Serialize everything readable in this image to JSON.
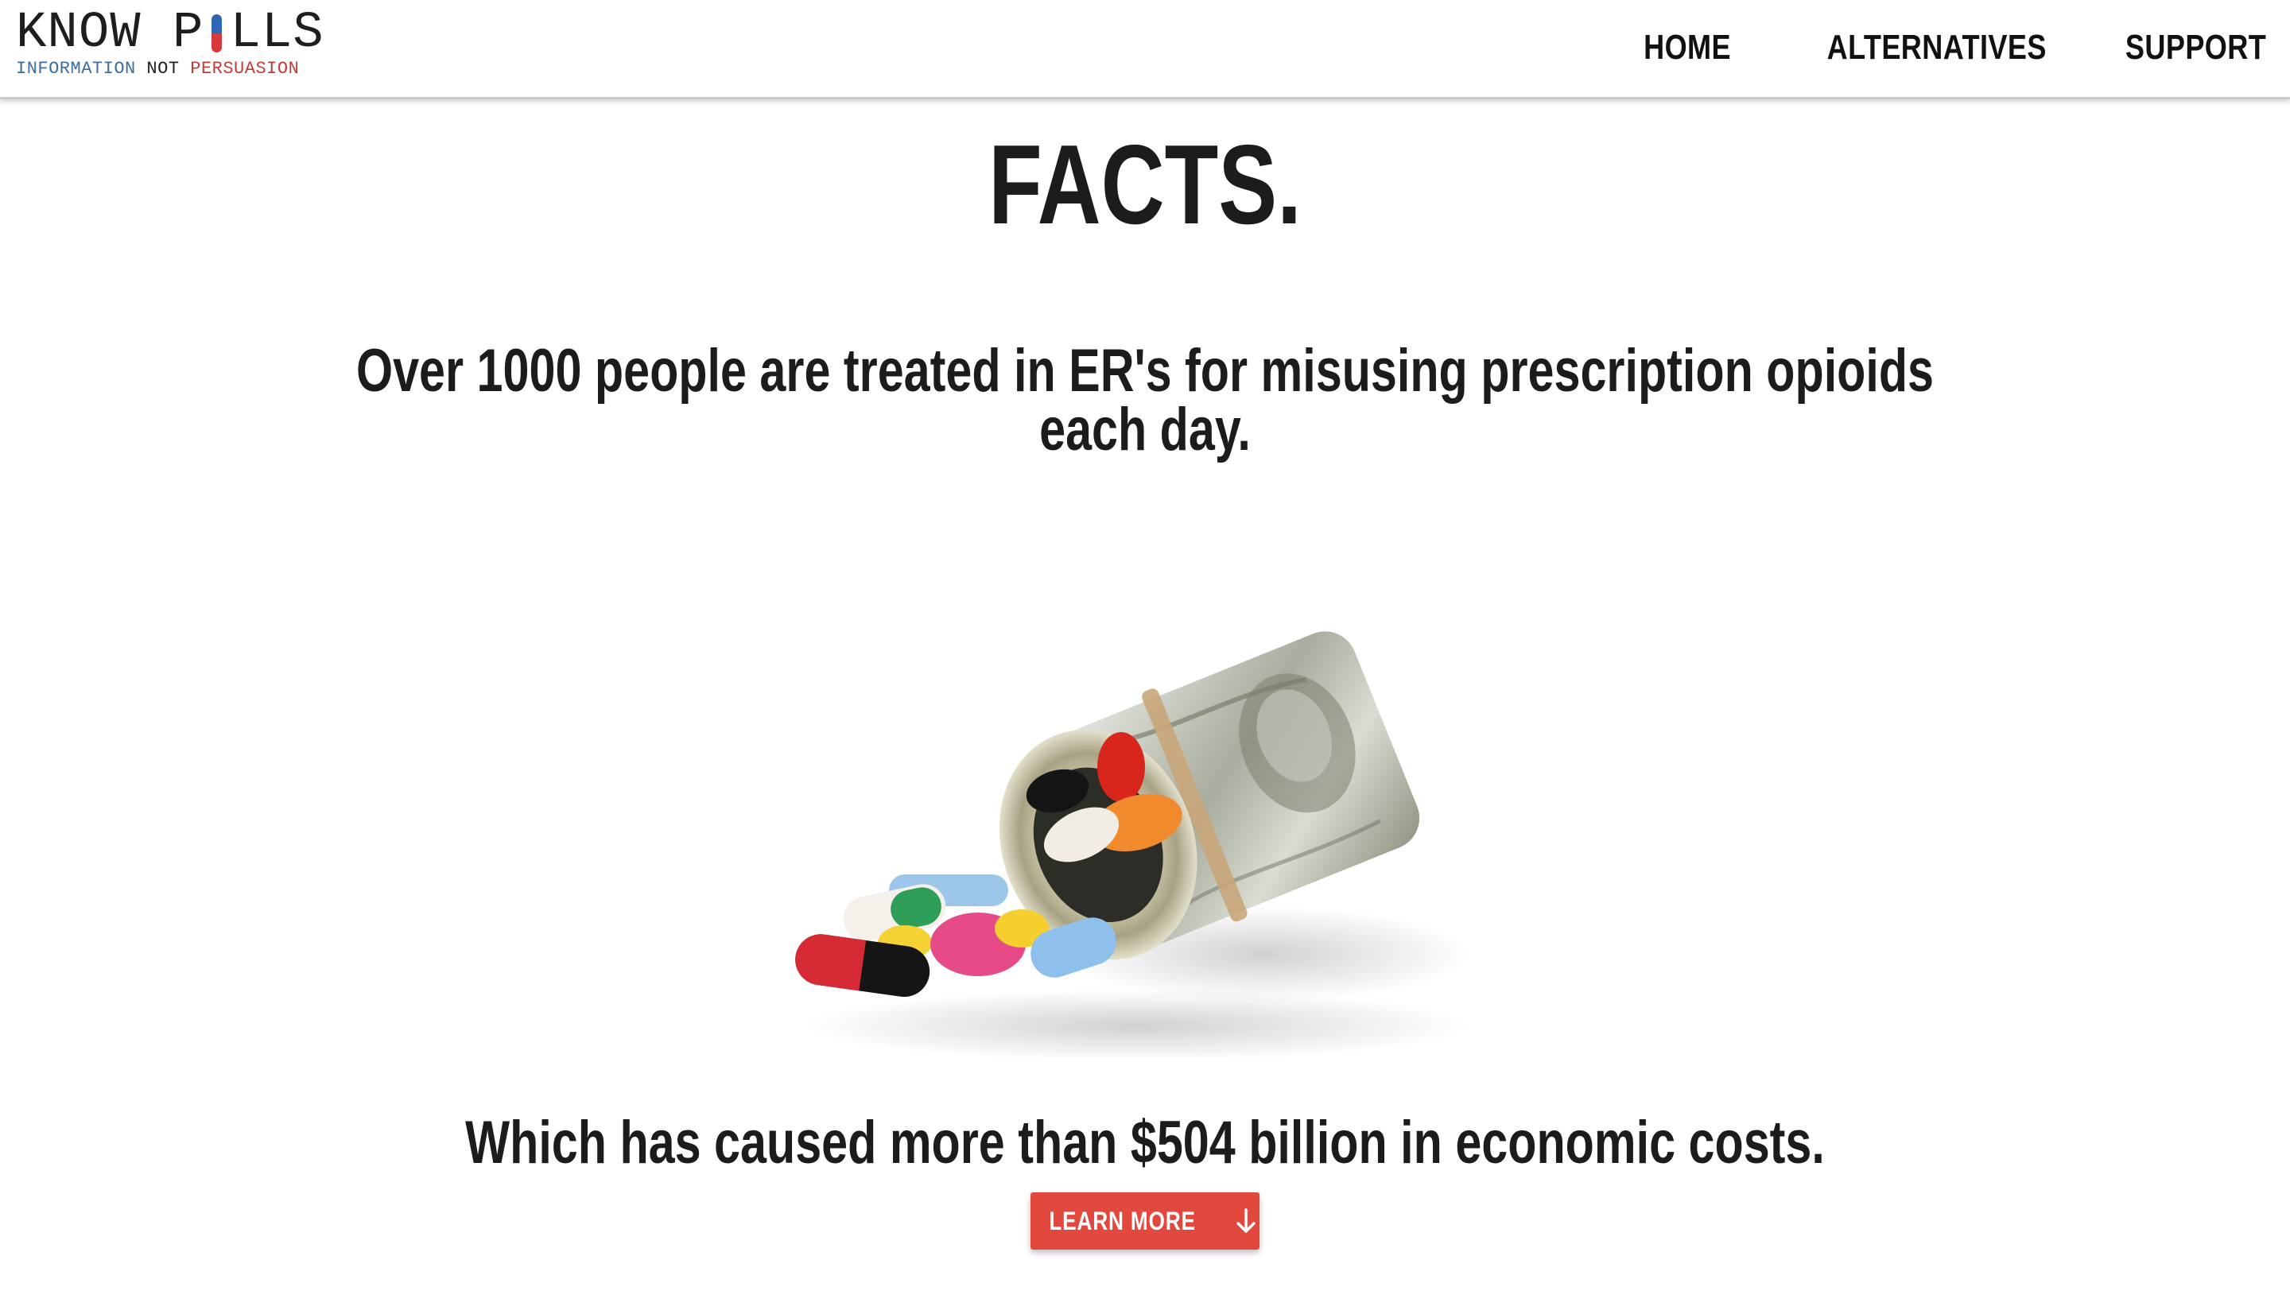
{
  "brand": {
    "logo_left": "KNOW P",
    "logo_right": "LLS",
    "tagline_part1": "INFORMATION",
    "tagline_part2": " NOT ",
    "tagline_part3": "PERSUASION",
    "colors": {
      "blue": "#3d6e9e",
      "red": "#c23b3b"
    }
  },
  "nav": {
    "items": [
      {
        "label": "HOME"
      },
      {
        "label": "ALTERNATIVES"
      },
      {
        "label": "SUPPORT"
      }
    ]
  },
  "main": {
    "title": "FACTS.",
    "fact1_line1": "Over 1000 people are treated in ER's for misusing prescription opioids",
    "fact1_line2": "each day.",
    "fact2": "Which has caused more than $504 billion in economic costs.",
    "cta_label": "LEARN MORE",
    "cta_icon": "arrow-down-icon",
    "accent_color": "#e2483d"
  },
  "illustration": {
    "icon": "money-roll-with-pills-image"
  }
}
